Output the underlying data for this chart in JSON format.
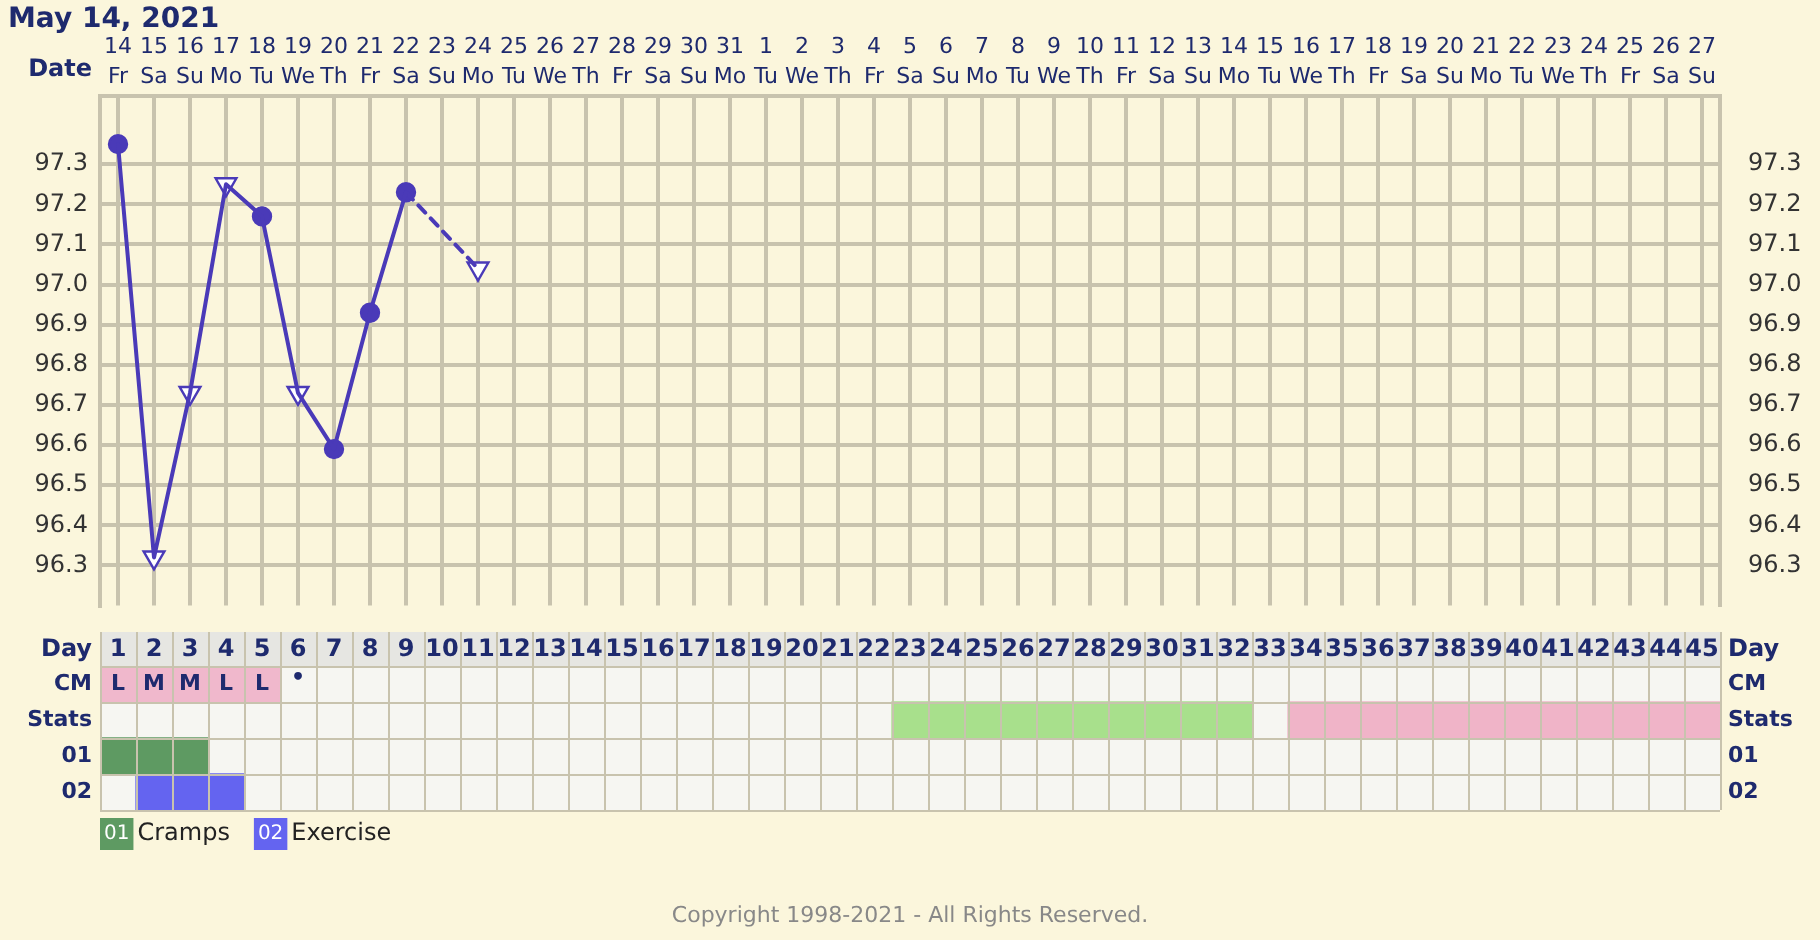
{
  "chart_data": [
    {
      "type": "line",
      "title": "May 14, 2021",
      "xlabel": "Date",
      "categories": [
        "14 Fr",
        "15 Sa",
        "16 Su",
        "17 Mo",
        "18 Tu",
        "19 We",
        "20 Th",
        "21 Fr",
        "22 Sa",
        "23 Su",
        "24 Mo",
        "25 Tu",
        "26 We",
        "27 Th",
        "28 Fr",
        "29 Sa",
        "30 Su",
        "31 Mo",
        "1 Tu",
        "2 We",
        "3 Th",
        "4 Fr",
        "5 Sa",
        "6 Su",
        "7 Mo",
        "8 Tu",
        "9 We",
        "10 Th",
        "11 Fr",
        "12 Sa",
        "13 Su",
        "14 Mo",
        "15 Tu",
        "16 We",
        "17 Th",
        "18 Fr",
        "19 Sa",
        "20 Su",
        "21 Mo",
        "22 Tu",
        "23 We",
        "24 Th",
        "25 Fr",
        "26 Sa",
        "27 Su"
      ],
      "ylim": [
        96.2,
        97.47
      ],
      "yticks": [
        96.3,
        96.4,
        96.5,
        96.6,
        96.7,
        96.8,
        96.9,
        {
          "value": 97.0,
          "label": "97.0"
        },
        97.1,
        97.2,
        97.3
      ],
      "y2lim": [
        96.2,
        97.47
      ],
      "y2ticks": [
        96.3,
        96.4,
        96.5,
        96.6,
        96.7,
        96.8,
        96.9,
        {
          "value": 97.0,
          "label": "97.0"
        },
        97.1,
        97.2,
        97.3
      ],
      "grid": true,
      "series": [
        {
          "type": "line",
          "color": "#4a3ab8",
          "line_style": "solid",
          "marker": "none",
          "values": [
            97.35,
            96.32,
            96.73,
            97.25,
            97.17,
            96.73,
            96.59,
            96.93,
            97.23,
            null,
            null,
            null,
            null,
            null,
            null,
            null,
            null,
            null,
            null,
            null,
            null,
            null,
            null,
            null,
            null,
            null,
            null,
            null,
            null,
            null,
            null,
            null,
            null,
            null,
            null,
            null,
            null,
            null,
            null,
            null,
            null,
            null,
            null,
            null,
            null
          ]
        },
        {
          "type": "line",
          "color": "#4a3ab8",
          "line_style": "dashed",
          "marker": "none",
          "values": [
            null,
            null,
            null,
            null,
            null,
            null,
            null,
            null,
            97.23,
            null,
            97.04,
            null,
            null,
            null,
            null,
            null,
            null,
            null,
            null,
            null,
            null,
            null,
            null,
            null,
            null,
            null,
            null,
            null,
            null,
            null,
            null,
            null,
            null,
            null,
            null,
            null,
            null,
            null,
            null,
            null,
            null,
            null,
            null,
            null,
            null
          ]
        },
        {
          "type": "scatter",
          "color": "#4a3ab8",
          "marker": "circle",
          "x": [
            "14 Fr",
            "18 Tu",
            "20 Th",
            "21 Fr",
            "22 Sa"
          ],
          "values": [
            97.35,
            97.17,
            96.59,
            96.93,
            97.23
          ]
        },
        {
          "type": "scatter",
          "color": "#4a3ab8",
          "marker": "triangle",
          "x": [
            "15 Sa",
            "16 Su",
            "17 Mo",
            "19 We",
            "24 Mo"
          ],
          "values": [
            96.32,
            96.73,
            97.25,
            96.73,
            97.04
          ]
        }
      ]
    },
    {
      "type": "bar",
      "orientation": "horizontal",
      "xlabel": "Day",
      "grid": true,
      "legend": "bottom left",
      "categories": [
        "CM",
        "Stats",
        "01",
        "02"
      ],
      "xlim": [
        0.5,
        45.5
      ],
      "xticks": [
        1,
        2,
        3,
        4,
        5,
        6,
        7,
        8,
        9,
        10,
        11,
        12,
        13,
        14,
        15,
        16,
        17,
        18,
        19,
        20,
        21,
        22,
        23,
        24,
        25,
        26,
        27,
        28,
        29,
        30,
        31,
        32,
        33,
        34,
        35,
        36,
        37,
        38,
        39,
        40,
        41,
        42,
        43,
        44,
        45
      ],
      "series": [
        {
          "color": "#f0b8cc",
          "base": [
            0.5,
            null,
            null,
            null
          ],
          "values": [
            5,
            null,
            null,
            null
          ]
        },
        {
          "color": "#a8e08c",
          "base": [
            null,
            22.5,
            null,
            null
          ],
          "values": [
            null,
            10,
            null,
            null
          ]
        },
        {
          "color": "#f0b4c8",
          "base": [
            null,
            33.5,
            null,
            null
          ],
          "values": [
            null,
            12,
            null,
            null
          ]
        },
        {
          "name": "Cramps",
          "color": "#5e9a62",
          "base": [
            null,
            null,
            0.5,
            null
          ],
          "values": [
            null,
            null,
            3,
            null
          ]
        },
        {
          "name": "Exercise",
          "color": "#6464f0",
          "base": [
            null,
            null,
            null,
            1.5
          ],
          "values": [
            null,
            null,
            null,
            3
          ]
        }
      ],
      "annotations": [
        {
          "text": "L",
          "x": 1,
          "y": "CM"
        },
        {
          "text": "M",
          "x": 2,
          "y": "CM"
        },
        {
          "text": "M",
          "x": 3,
          "y": "CM"
        },
        {
          "text": "L",
          "x": 4,
          "y": "CM"
        },
        {
          "text": "L",
          "x": 5,
          "y": "CM"
        },
        "•",
        "Copyright 1998-2021 - All Rights Reserved."
      ]
    }
  ]
}
